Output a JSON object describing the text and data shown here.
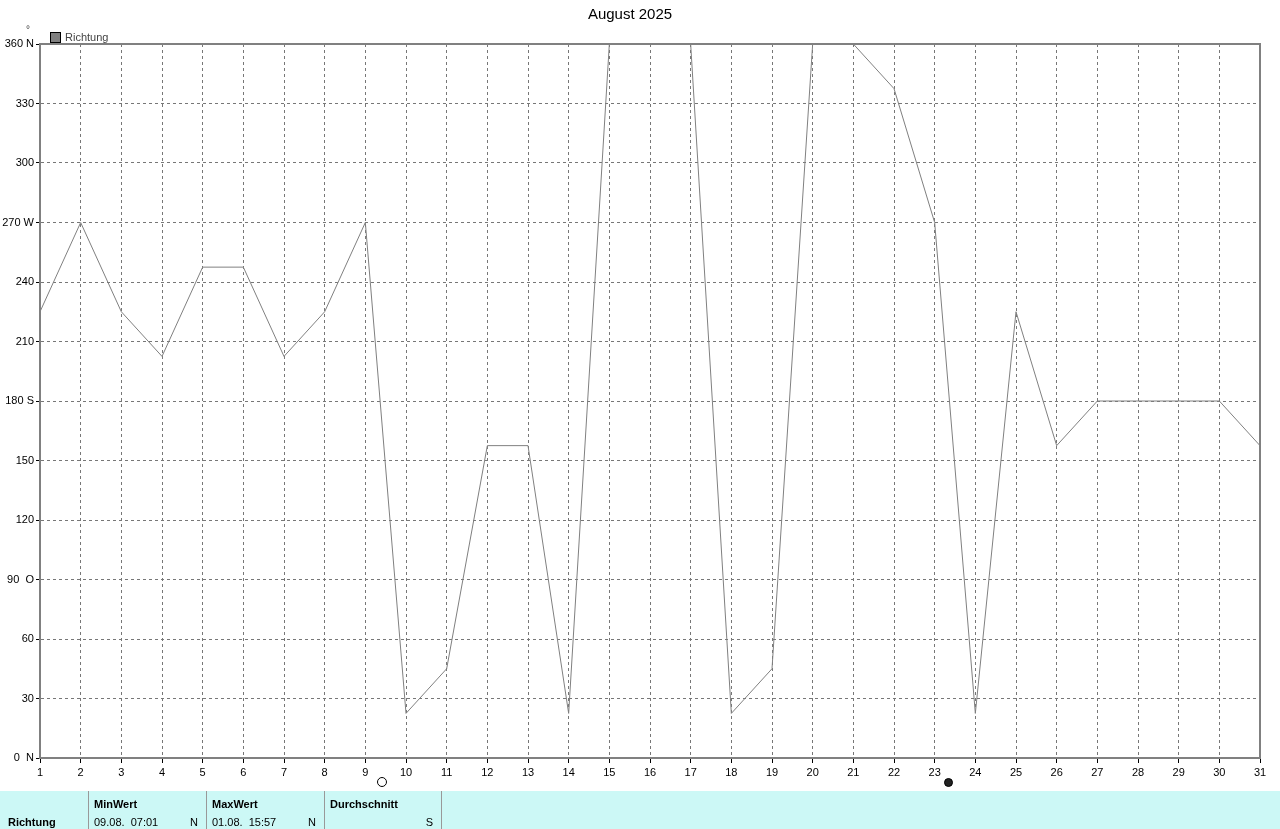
{
  "chart_data": {
    "type": "line",
    "title": "August 2025",
    "ylabel": "°",
    "legend": "top left",
    "grid": true,
    "marker": "none",
    "line_style": "solid",
    "x": [
      1,
      2,
      3,
      4,
      5,
      6,
      7,
      8,
      9,
      10,
      11,
      12,
      13,
      14,
      15,
      16,
      17,
      18,
      19,
      20,
      21,
      22,
      23,
      24,
      25,
      26,
      27,
      28,
      29,
      30,
      31
    ],
    "xlim": [
      1,
      31
    ],
    "xticks": [
      1,
      2,
      3,
      4,
      5,
      6,
      7,
      8,
      9,
      10,
      11,
      12,
      13,
      14,
      15,
      16,
      17,
      18,
      19,
      20,
      21,
      22,
      23,
      24,
      25,
      26,
      27,
      28,
      29,
      30,
      31
    ],
    "ylim": [
      0,
      360
    ],
    "yticks": [
      {
        "value": 0,
        "label": "0  N"
      },
      30,
      60,
      {
        "value": 90,
        "label": "90  O"
      },
      120,
      150,
      {
        "value": 180,
        "label": "180 S"
      },
      210,
      240,
      {
        "value": 270,
        "label": "270 W"
      },
      300,
      330,
      {
        "value": 360,
        "label": "360 N"
      }
    ],
    "series": [
      {
        "name": "Richtung",
        "color": "#808080",
        "values": [
          225,
          270,
          225,
          202.5,
          247.5,
          247.5,
          202.5,
          225,
          270,
          22.5,
          45,
          157.5,
          157.5,
          22.5,
          360,
          360,
          360,
          22.5,
          45,
          360,
          360,
          337.5,
          270,
          22.5,
          225,
          157.5,
          180,
          180,
          180,
          180,
          157.5
        ]
      }
    ],
    "annotations": [
      "Richtung",
      "MinWert",
      "09.08.  07:01",
      "N",
      "MaxWert",
      "01.08.  15:57",
      "N",
      "Durchschnitt",
      "S"
    ]
  }
}
